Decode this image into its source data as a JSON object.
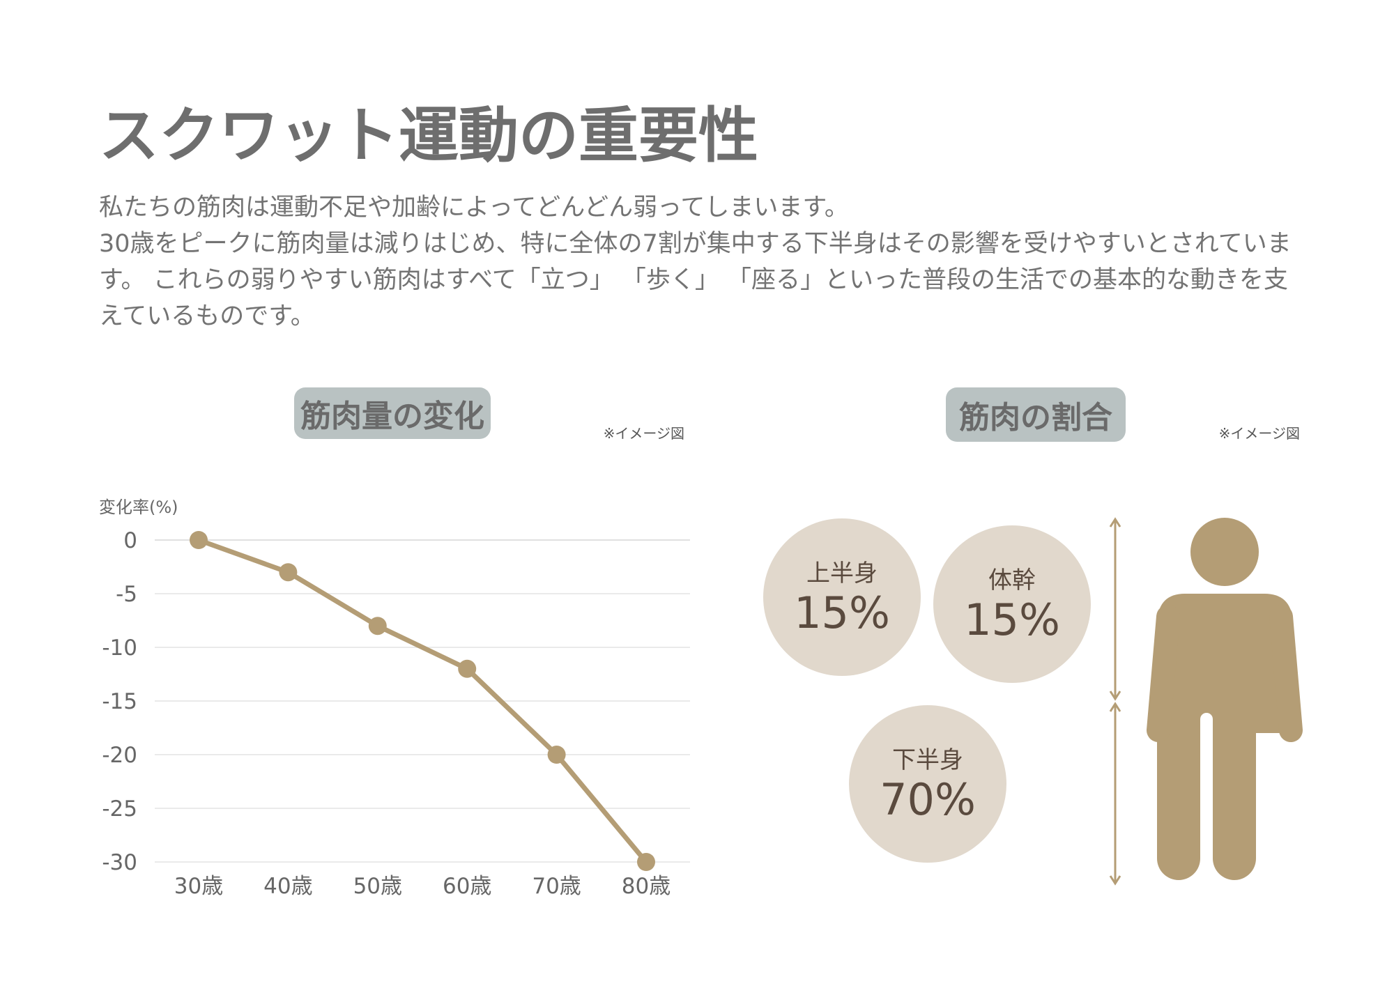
{
  "title": "スクワット運動の重要性",
  "intro": [
    "私たちの筋肉は運動不足や加齢によってどんどん弱ってしまいます。",
    "30歳をピークに筋肉量は減りはじめ、特に全体の7割が集中する下半身はその影響を受けやすいとされています。 これらの弱りやすい筋肉はすべて「立つ」 「歩く」 「座る」といった普段の生活での基本的な動きを支えているものです。"
  ],
  "left_section": {
    "heading": "筋肉量の変化",
    "note": "※イメージ図"
  },
  "right_section": {
    "heading": "筋肉の割合",
    "note": "※イメージ図",
    "parts": [
      {
        "label": "上半身",
        "value": "15%"
      },
      {
        "label": "体幹",
        "value": "15%"
      },
      {
        "label": "下半身",
        "value": "70%"
      }
    ]
  },
  "colors": {
    "accent": "#b49d75",
    "pill_bg": "#b9c2c2",
    "circle_bg": "#e1d8cc",
    "circle_text": "#5a4a3e",
    "grid": "#e4e4e4"
  },
  "chart_data": {
    "type": "line",
    "title": "筋肉量の変化",
    "ylabel": "変化率(%)",
    "xlabel": "",
    "categories": [
      "30歳",
      "40歳",
      "50歳",
      "60歳",
      "70歳",
      "80歳"
    ],
    "series": [
      {
        "name": "変化率",
        "values": [
          0,
          -3,
          -8,
          -12,
          -20,
          -30
        ]
      }
    ],
    "ylim": [
      -30,
      0
    ],
    "yticks": [
      0,
      -5,
      -10,
      -15,
      -20,
      -25,
      -30
    ],
    "grid": true
  }
}
